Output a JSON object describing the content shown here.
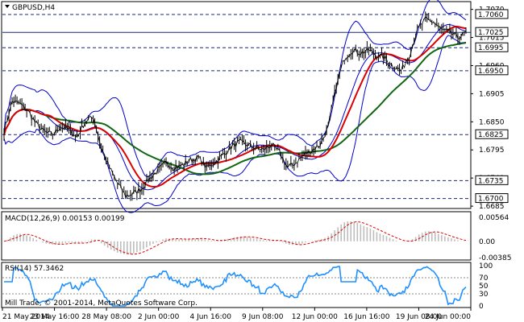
{
  "window": {
    "symbol_title": "GBPUSD,H4"
  },
  "colors": {
    "price": "#000000",
    "bands": "#0000cc",
    "ma_fast": "#dd0000",
    "ma_slow": "#116611",
    "macd_hist": "#bdbdbd",
    "macd_signal": "#dd0000",
    "rsi": "#1e90ff",
    "grid": "#1a237e",
    "level_box": "#ffffff"
  },
  "main_axis": {
    "ticks": [
      "1.7070",
      "1.7015",
      "1.6960",
      "1.6905",
      "1.6850",
      "1.6795",
      "1.6740",
      "1.6685"
    ],
    "range": [
      1.6682,
      1.7082
    ]
  },
  "levels": [
    {
      "label": "1.7060",
      "value": 1.706,
      "style": "dashed"
    },
    {
      "label": "1.7025",
      "value": 1.7025,
      "style": "solid"
    },
    {
      "label": "1.6995",
      "value": 1.6995,
      "style": "dashed"
    },
    {
      "label": "1.6950",
      "value": 1.695,
      "style": "dashed"
    },
    {
      "label": "1.6825",
      "value": 1.6825,
      "style": "dashed"
    },
    {
      "label": "1.6735",
      "value": 1.6735,
      "style": "dashed"
    },
    {
      "label": "1.6700",
      "value": 1.67,
      "style": "dashed"
    }
  ],
  "macd": {
    "label": "MACD(12,26,9) 0.00153 0.00199",
    "ticks": [
      "0.00564",
      "0.00",
      "-0.00385"
    ],
    "range": [
      -0.0042,
      0.006
    ]
  },
  "rsi": {
    "label": "RSI(14) 57.3462",
    "ticks": [
      "100",
      "70",
      "50",
      "30",
      "0"
    ],
    "range": [
      0,
      100
    ]
  },
  "copyright": "Mill Trade, © 2001-2014, MetaQuotes Software Corp.",
  "time_labels": [
    "21 May 2014",
    "23 May 16:00",
    "28 May 08:00",
    "2 Jun 00:00",
    "4 Jun 16:00",
    "9 Jun 08:00",
    "12 Jun 00:00",
    "16 Jun 16:00",
    "19 Jun 08:00",
    "24 Jun 00:00"
  ],
  "chart_data": {
    "type": "line",
    "title": "GBPUSD,H4",
    "x_ticks": [
      "21 May 2014",
      "23 May 16:00",
      "28 May 08:00",
      "2 Jun 00:00",
      "4 Jun 16:00",
      "9 Jun 08:00",
      "12 Jun 00:00",
      "16 Jun 16:00",
      "19 Jun 08:00",
      "24 Jun 00:00"
    ],
    "y_ticks": [
      "1.7070",
      "1.7015",
      "1.6960",
      "1.6905",
      "1.6850",
      "1.6795",
      "1.6740",
      "1.6685"
    ],
    "close_approx": [
      1.683,
      1.689,
      1.6885,
      1.687,
      1.6845,
      1.683,
      1.6825,
      1.684,
      1.6835,
      1.682,
      1.685,
      1.686,
      1.68,
      1.676,
      1.673,
      1.6705,
      1.671,
      1.672,
      1.674,
      1.6755,
      1.677,
      1.676,
      1.6765,
      1.6775,
      1.678,
      1.676,
      1.677,
      1.6785,
      1.68,
      1.681,
      1.6805,
      1.68,
      1.6795,
      1.6805,
      1.679,
      1.676,
      1.677,
      1.6785,
      1.6795,
      1.6805,
      1.684,
      1.692,
      1.6975,
      1.699,
      1.6985,
      1.699,
      1.698,
      1.6975,
      1.696,
      1.695,
      1.698,
      1.703,
      1.705,
      1.7045,
      1.703,
      1.7025,
      1.7015,
      1.7025
    ]
  }
}
